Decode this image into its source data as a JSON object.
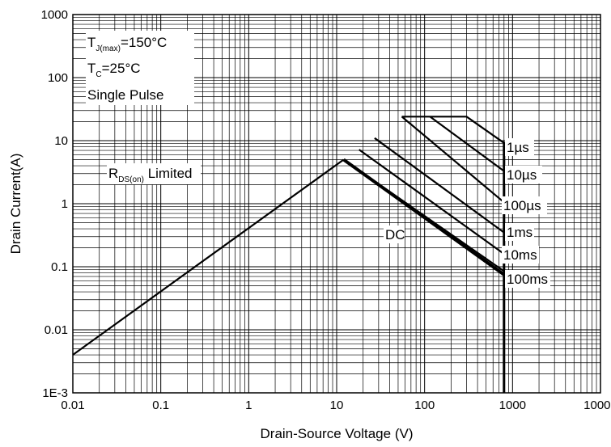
{
  "chart_data": {
    "type": "line",
    "xlabel": "Drain-Source Voltage (V)",
    "ylabel": "Drain Current(A)",
    "xscale": "log",
    "yscale": "log",
    "xlim": [
      0.01,
      10000
    ],
    "ylim": [
      0.001,
      1000
    ],
    "grid": true,
    "x_tick_labels": [
      "0.01",
      "0.1",
      "1",
      "10",
      "100",
      "1000",
      "10000"
    ],
    "y_tick_labels": [
      "1E-3",
      "0.01",
      "0.1",
      "1",
      "10",
      "100",
      "1000"
    ],
    "conditions": {
      "tj_main": "T",
      "tj_sub": "J(max)",
      "tj_rest": "=150°C",
      "tc_main": "T",
      "tc_sub": "C",
      "tc_rest": "=25°C",
      "pulse": "Single Pulse"
    },
    "rds_label": {
      "main": "R",
      "sub": "DS(on)",
      "rest": " Limited"
    },
    "rds_limit_line": {
      "x": [
        0.01,
        12
      ],
      "y": [
        0.004,
        5
      ]
    },
    "series": [
      {
        "name": "1µs",
        "x": [
          55,
          300,
          800
        ],
        "y": [
          24,
          24,
          9.2
        ]
      },
      {
        "name": "10µs",
        "x": [
          115,
          800
        ],
        "y": [
          24,
          3.3
        ]
      },
      {
        "name": "100µs",
        "x": [
          55,
          800
        ],
        "y": [
          24,
          1.05
        ]
      },
      {
        "name": "1ms",
        "x": [
          27,
          800
        ],
        "y": [
          11,
          0.35
        ]
      },
      {
        "name": "10ms",
        "x": [
          18,
          800
        ],
        "y": [
          7.2,
          0.16
        ]
      },
      {
        "name": "100ms",
        "x": [
          12,
          800
        ],
        "y": [
          5,
          0.085
        ]
      },
      {
        "name": "DC",
        "x": [
          12,
          800
        ],
        "y": [
          5,
          0.075
        ]
      }
    ],
    "vds_limit": {
      "x": 800,
      "y": [
        0.001,
        24
      ]
    }
  }
}
